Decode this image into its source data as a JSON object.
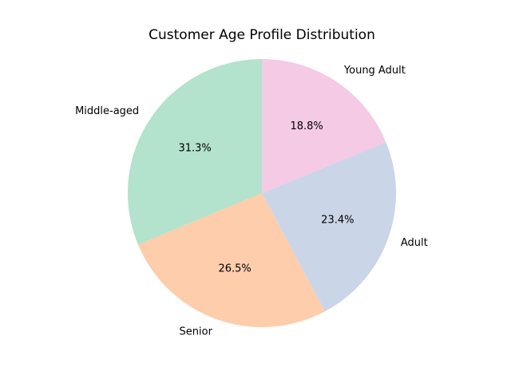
{
  "chart_data": {
    "type": "pie",
    "title": "Customer Age Profile Distribution",
    "start_angle_deg": 90,
    "direction": "counterclockwise",
    "slices": [
      {
        "label": "Middle-aged",
        "value": 31.3,
        "pct_label": "31.3%",
        "color": "#b3e2cd"
      },
      {
        "label": "Senior",
        "value": 26.5,
        "pct_label": "26.5%",
        "color": "#fdcdac"
      },
      {
        "label": "Adult",
        "value": 23.4,
        "pct_label": "23.4%",
        "color": "#cbd5e8"
      },
      {
        "label": "Young Adult",
        "value": 18.8,
        "pct_label": "18.8%",
        "color": "#f4cae4"
      }
    ]
  }
}
